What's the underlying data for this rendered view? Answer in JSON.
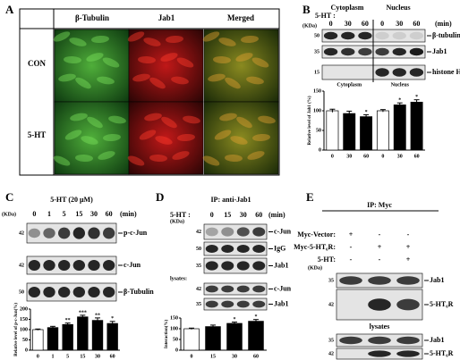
{
  "panel_a": {
    "label": "A",
    "columns": [
      "β-Tubulin",
      "Jab1",
      "Merged"
    ],
    "rows": [
      "CON",
      "5-HT"
    ]
  },
  "panel_b": {
    "label": "B",
    "treatment": "5-HT :",
    "fractions": [
      "Cytoplasm",
      "Nucleus"
    ],
    "times": [
      "0",
      "30",
      "60",
      "0",
      "30",
      "60"
    ],
    "unit": "(min)",
    "kda": "(KDa)",
    "markers": [
      50,
      35,
      15
    ],
    "bands": [
      "β-tubulin",
      "Jab1",
      "histone H3"
    ]
  },
  "panel_c": {
    "label": "C",
    "treatment": "5-HT (20 μM)",
    "times": [
      "0",
      "1",
      "5",
      "15",
      "30",
      "60"
    ],
    "unit": "(min)",
    "kda": "(KDa)",
    "markers": [
      42,
      42,
      50
    ],
    "bands": [
      "p-c-Jun",
      "c-Jun",
      "β-Tubulin"
    ]
  },
  "panel_d": {
    "label": "D",
    "title": "IP: anti-Jab1",
    "treatment": "5-HT :",
    "times": [
      "0",
      "15",
      "30",
      "60"
    ],
    "unit": "(min)",
    "kda": "(KDa)",
    "markers": [
      42,
      50,
      35,
      42,
      35
    ],
    "bands": [
      "c-Jun",
      "IgG",
      "Jab1",
      "c-Jun",
      "Jab1"
    ],
    "lysates": "lysates:"
  },
  "panel_e": {
    "label": "E",
    "title": "IP: Myc",
    "conditions": [
      {
        "label": "Myc-Vector:",
        "signs": [
          "+",
          "-",
          "-"
        ]
      },
      {
        "label": "Myc-5-HT₆R:",
        "signs": [
          "-",
          "+",
          "+"
        ]
      },
      {
        "label": "5-HT:",
        "signs": [
          "-",
          "-",
          "+"
        ]
      }
    ],
    "kda": "(KDa)",
    "markers": [
      35,
      42,
      35,
      42
    ],
    "bands": [
      "Jab1",
      "5-HT₆R",
      "Jab1",
      "5-HT₆R"
    ],
    "lysates": "lysates"
  },
  "chart_data": [
    {
      "type": "bar",
      "ylabel": "Relative level of Jab1 (%)",
      "groups": [
        "Cytoplasm",
        "Nucleus"
      ],
      "categories": [
        "0",
        "30",
        "60",
        "0",
        "30",
        "60"
      ],
      "values": [
        100,
        93,
        85,
        100,
        115,
        122
      ],
      "errors": [
        4,
        6,
        5,
        3,
        5,
        6
      ],
      "colors": [
        "#ffffff",
        "#000000",
        "#000000",
        "#ffffff",
        "#000000",
        "#000000"
      ],
      "annotations": [
        null,
        null,
        "*",
        null,
        "*",
        "*"
      ],
      "ylim": [
        0,
        150
      ],
      "yticks": [
        0,
        50,
        100,
        150
      ]
    },
    {
      "type": "bar",
      "ylabel": "Relative level of p-c-Jun(%)",
      "categories": [
        "0",
        "1",
        "5",
        "15",
        "30",
        "60"
      ],
      "values": [
        100,
        110,
        125,
        162,
        145,
        130
      ],
      "errors": [
        3,
        6,
        7,
        8,
        12,
        10
      ],
      "colors": [
        "#ffffff",
        "#000000",
        "#000000",
        "#000000",
        "#000000",
        "#000000"
      ],
      "annotations": [
        null,
        null,
        "**",
        "***",
        "**",
        "*"
      ],
      "ylim": [
        0,
        200
      ],
      "yticks": [
        0,
        50,
        100,
        150,
        200
      ]
    },
    {
      "type": "bar",
      "ylabel": "Interaction(%)",
      "categories": [
        "0",
        "15",
        "30",
        "60"
      ],
      "values": [
        100,
        110,
        125,
        135
      ],
      "errors": [
        3,
        7,
        6,
        8
      ],
      "colors": [
        "#ffffff",
        "#000000",
        "#000000",
        "#000000"
      ],
      "annotations": [
        null,
        null,
        "*",
        "*"
      ],
      "ylim": [
        0,
        150
      ],
      "yticks": [
        0,
        50,
        100,
        150
      ]
    }
  ]
}
